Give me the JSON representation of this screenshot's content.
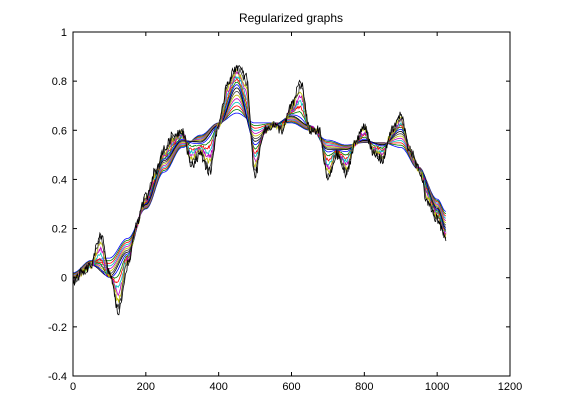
{
  "chart_data": {
    "type": "line",
    "title": "Regularized graphs",
    "xlabel": "",
    "ylabel": "",
    "xlim": [
      0,
      1200
    ],
    "ylim": [
      -0.4,
      1
    ],
    "x_ticks": [
      0,
      200,
      400,
      600,
      800,
      1000,
      1200
    ],
    "x_tick_labels": [
      "0",
      "200",
      "400",
      "600",
      "800",
      "1000",
      "1200"
    ],
    "y_ticks": [
      -0.4,
      -0.2,
      0,
      0.2,
      0.4,
      0.6,
      0.8,
      1
    ],
    "y_tick_labels": [
      "-0.4",
      "-0.2",
      "0",
      "0.2",
      "0.4",
      "0.6",
      "0.8",
      "1"
    ],
    "grid": false,
    "legend": "none",
    "series_colors": [
      "#0000ff",
      "#008000",
      "#ff0000",
      "#00bfbf",
      "#bf00bf",
      "#bfbf00",
      "#404040",
      "#000000"
    ],
    "series": [
      {
        "values_x": [
          0,
          25,
          50,
          75,
          100,
          125,
          150,
          175,
          200,
          225,
          250,
          275,
          300,
          325,
          350,
          375,
          400,
          425,
          450,
          475,
          500,
          525,
          550,
          575,
          600,
          625,
          650,
          675,
          700,
          725,
          750,
          775,
          800,
          825,
          850,
          875,
          900,
          925,
          950,
          975,
          1000,
          1024
        ],
        "values": [
          -0.02,
          0.02,
          0.05,
          0.18,
          0.02,
          -0.14,
          0.05,
          0.22,
          0.33,
          0.43,
          0.52,
          0.58,
          0.6,
          0.46,
          0.5,
          0.43,
          0.62,
          0.8,
          0.86,
          0.82,
          0.42,
          0.6,
          0.62,
          0.6,
          0.7,
          0.8,
          0.6,
          0.6,
          0.4,
          0.5,
          0.42,
          0.55,
          0.62,
          0.5,
          0.48,
          0.6,
          0.66,
          0.52,
          0.44,
          0.3,
          0.24,
          0.16
        ]
      },
      {
        "values_x": [
          0,
          50,
          100,
          150,
          200,
          250,
          300,
          350,
          400,
          450,
          500,
          550,
          600,
          650,
          700,
          750,
          800,
          850,
          900,
          950,
          1000,
          1024
        ],
        "values": [
          0.0,
          0.05,
          0.0,
          0.1,
          0.3,
          0.48,
          0.56,
          0.55,
          0.62,
          0.78,
          0.55,
          0.62,
          0.66,
          0.62,
          0.52,
          0.52,
          0.56,
          0.54,
          0.6,
          0.45,
          0.28,
          0.2
        ]
      },
      {
        "values_x": [
          0,
          50,
          100,
          150,
          200,
          250,
          300,
          350,
          400,
          450,
          500,
          550,
          600,
          650,
          700,
          750,
          800,
          850,
          900,
          950,
          1000,
          1024
        ],
        "values": [
          0.02,
          0.07,
          0.08,
          0.16,
          0.28,
          0.43,
          0.53,
          0.58,
          0.63,
          0.67,
          0.63,
          0.63,
          0.63,
          0.6,
          0.56,
          0.54,
          0.55,
          0.55,
          0.53,
          0.44,
          0.32,
          0.27
        ]
      }
    ]
  }
}
